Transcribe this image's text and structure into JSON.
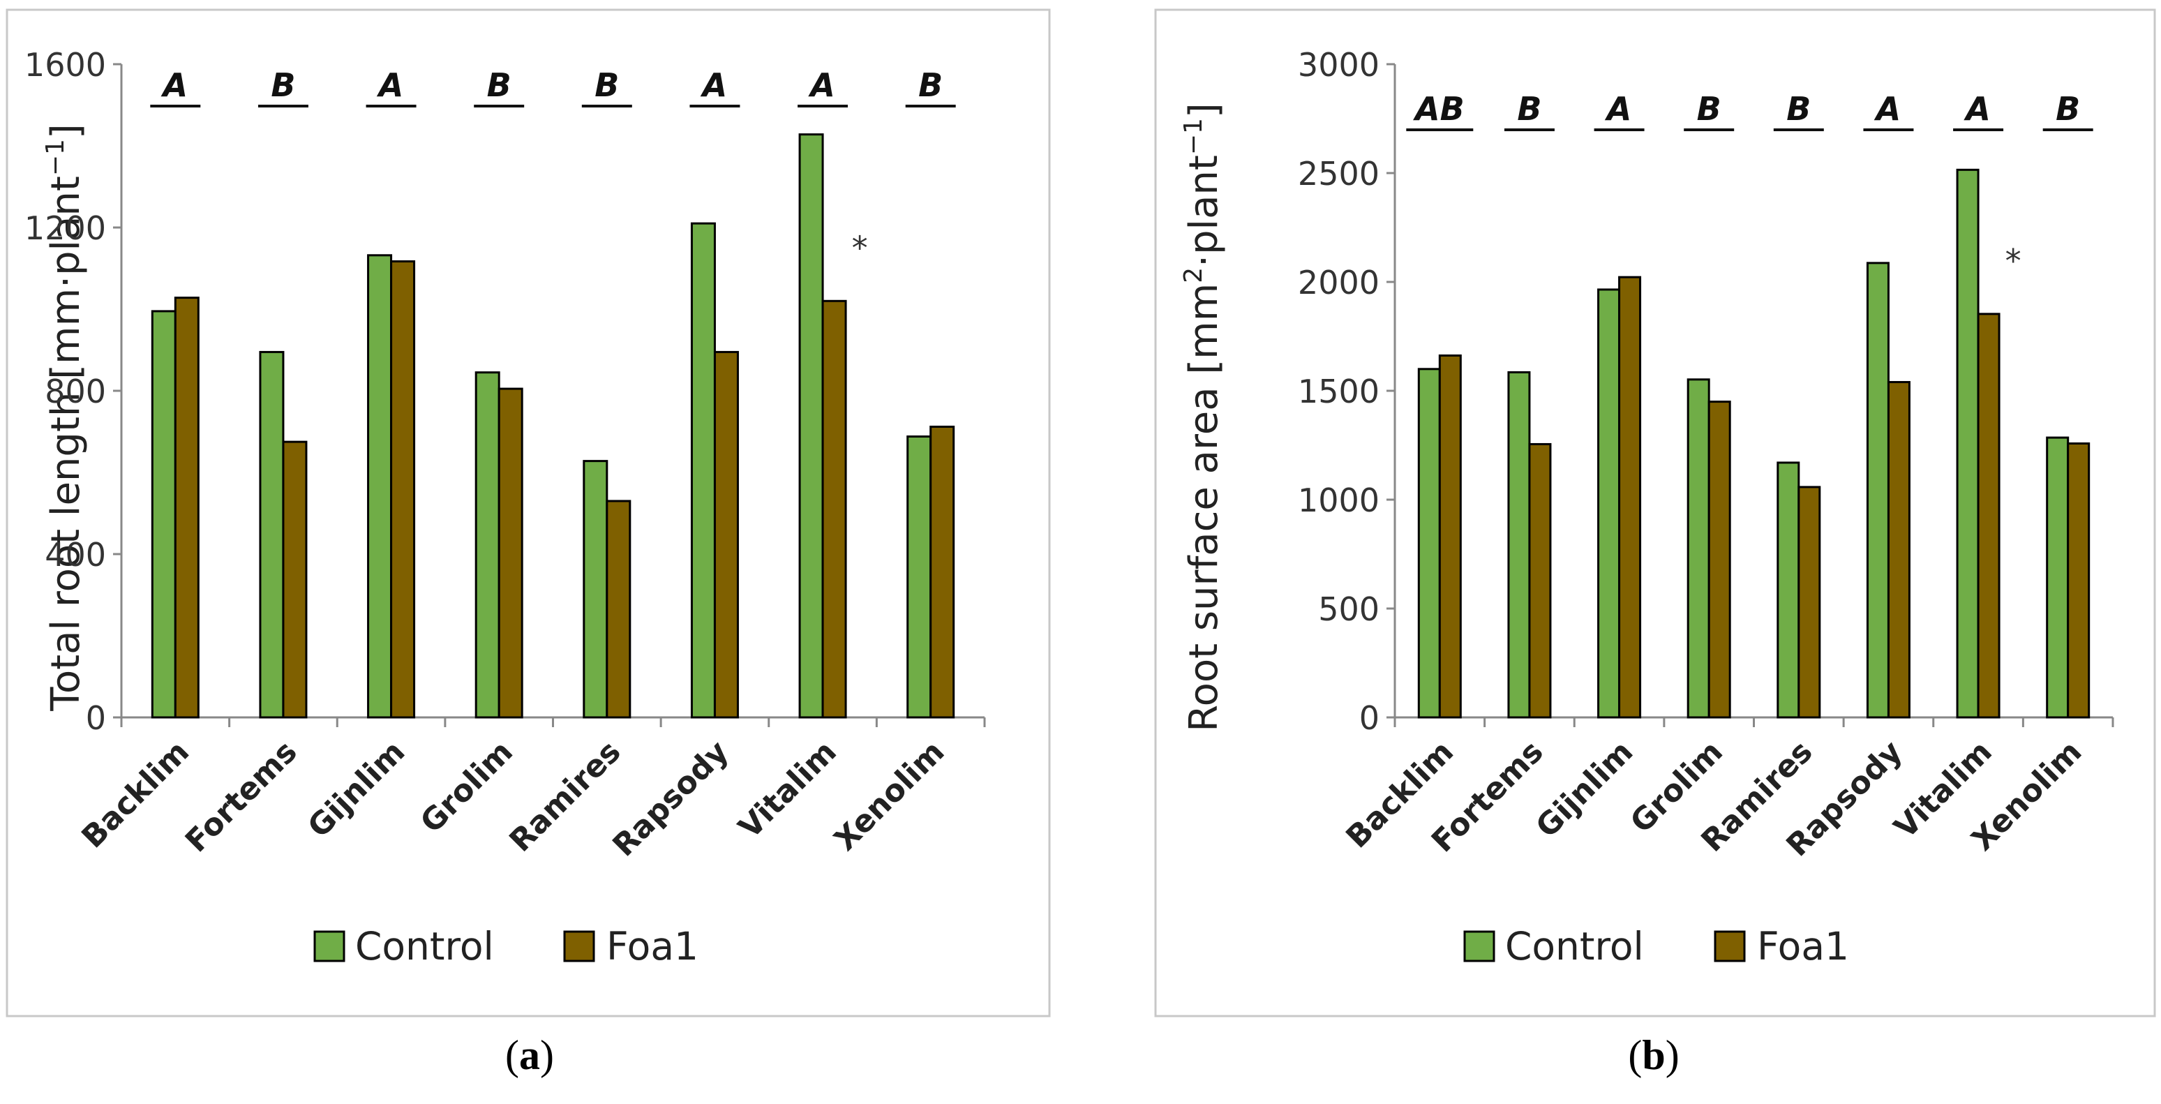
{
  "chart_data": [
    {
      "type": "bar",
      "panel_label": "a",
      "ylabel_main": "Total root  length [mm·plant",
      "ylabel_sup": "−1",
      "ylabel_end": "]",
      "xlabel": "",
      "ylim": [
        0,
        1600
      ],
      "yticks": [
        0,
        400,
        800,
        1200,
        1600
      ],
      "categories": [
        "Backlim",
        "Fortems",
        "Gijnlim",
        "Grolim",
        "Ramires",
        "Rapsody",
        "Vitalim",
        "Xenolim"
      ],
      "series": [
        {
          "name": "Control",
          "color": "#70AD47",
          "values": [
            995,
            895,
            1132,
            845,
            628,
            1210,
            1428,
            688
          ]
        },
        {
          "name": "Foa1",
          "color": "#7F6000",
          "values": [
            1028,
            675,
            1117,
            805,
            530,
            895,
            1020,
            712
          ]
        }
      ],
      "group_letters": [
        "A",
        "B",
        "A",
        "B",
        "B",
        "A",
        "A",
        "B"
      ],
      "significance": [
        {
          "category": "Vitalim",
          "label": "*"
        }
      ],
      "grid": false,
      "legend": "bottom"
    },
    {
      "type": "bar",
      "panel_label": "b",
      "ylabel_main": "Root surface area [mm",
      "ylabel_sup1": "2",
      "ylabel_mid": "·plant",
      "ylabel_sup2": "−1",
      "ylabel_end": "]",
      "xlabel": "",
      "ylim": [
        0,
        3000
      ],
      "yticks": [
        0,
        500,
        1000,
        1500,
        2000,
        2500,
        3000
      ],
      "categories": [
        "Backlim",
        "Fortems",
        "Gijnlim",
        "Grolim",
        "Ramires",
        "Rapsody",
        "Vitalim",
        "Xenolim"
      ],
      "series": [
        {
          "name": "Control",
          "color": "#70AD47",
          "values": [
            1600,
            1585,
            1965,
            1552,
            1170,
            2087,
            2515,
            1285
          ]
        },
        {
          "name": "Foa1",
          "color": "#7F6000",
          "values": [
            1662,
            1255,
            2022,
            1450,
            1058,
            1540,
            1853,
            1258
          ]
        }
      ],
      "group_letters": [
        "AB",
        "B",
        "A",
        "B",
        "B",
        "A",
        "A",
        "B"
      ],
      "significance": [
        {
          "category": "Vitalim",
          "label": "*"
        }
      ],
      "grid": false,
      "legend": "bottom"
    }
  ]
}
